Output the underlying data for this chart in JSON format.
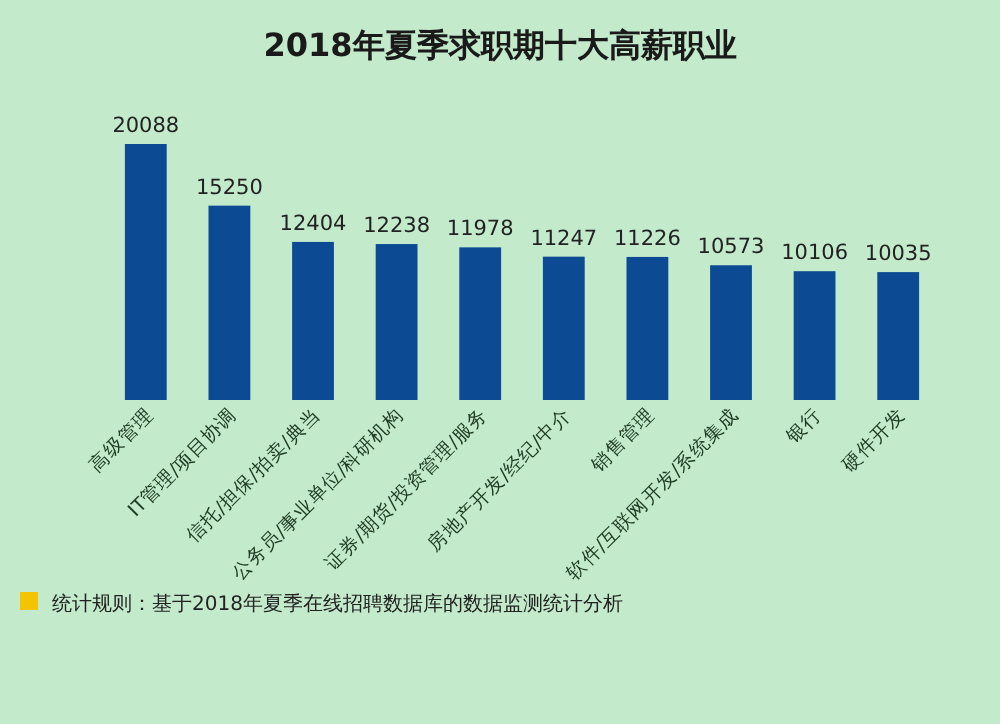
{
  "chart_data": {
    "type": "bar",
    "title": "2018年夏季求职期十大高薪职业",
    "categories": [
      "高级管理",
      "IT管理/项目协调",
      "信托/担保/拍卖/典当",
      "公务员/事业单位/科研机构",
      "证券/期货/投资管理/服务",
      "房地产开发/经纪/中介",
      "销售管理",
      "软件/互联网开发/系统集成",
      "银行",
      "硬件开发"
    ],
    "values": [
      20088,
      15250,
      12404,
      12238,
      11978,
      11247,
      11226,
      10573,
      10106,
      10035
    ],
    "color": "#0d4a94",
    "data_labels": true,
    "annotations": [
      "统计规则：基于2018年夏季在线招聘数据库的数据监测统计分析"
    ]
  }
}
